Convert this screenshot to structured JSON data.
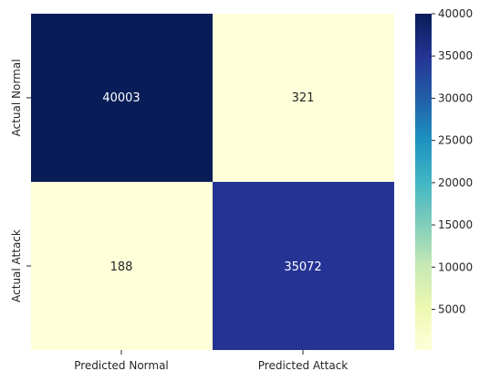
{
  "chart_data": {
    "type": "heatmap",
    "title": "",
    "xlabel": "",
    "ylabel": "",
    "x_categories": [
      "Predicted Normal",
      "Predicted Attack"
    ],
    "y_categories": [
      "Actual Normal",
      "Actual Attack"
    ],
    "values": [
      [
        40003,
        321
      ],
      [
        188,
        35072
      ]
    ],
    "value_labels": [
      "40003",
      "321",
      "188",
      "35072"
    ],
    "colormap": "YlGnBu",
    "color_range": [
      188,
      40003
    ],
    "colorbar": {
      "ticks": [
        5000,
        10000,
        15000,
        20000,
        25000,
        30000,
        35000,
        40000
      ],
      "tick_labels": [
        "5000",
        "10000",
        "15000",
        "20000",
        "25000",
        "30000",
        "35000",
        "40000"
      ]
    },
    "colors": {
      "cell_40003": "#081d58",
      "cell_321": "#ffffd9",
      "cell_188": "#ffffd9",
      "cell_35072": "#253494",
      "text_dark_cell": "#ffffff",
      "text_light_cell": "#262626"
    }
  }
}
